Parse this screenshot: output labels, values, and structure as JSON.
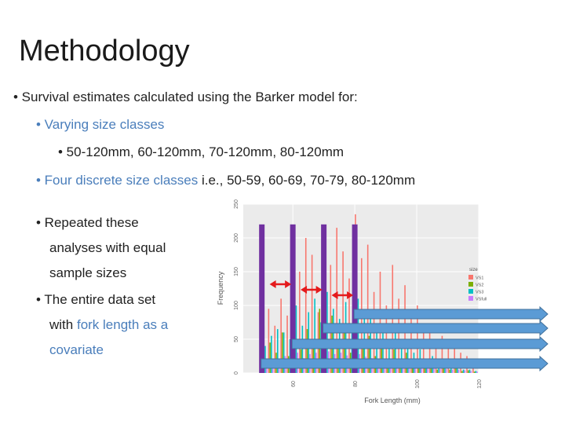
{
  "slide": {
    "title": "Methodology",
    "bullet1": "• Survival estimates calculated using the Barker model for:",
    "bullet1a": "• Varying size classes",
    "bullet1a_i": "• 50-120mm, 60-120mm, 70-120mm, 80-120mm",
    "bullet1b_blue": "• Four discrete size classes",
    "bullet1b_rest": " i.e., 50-59, 60-69, 70-79, 80-120mm",
    "bullet2_l1": "• Repeated these",
    "bullet2_l2": "analyses with equal",
    "bullet2_l3": "sample sizes",
    "bullet3_l1": "• The entire data set",
    "bullet3_l2_a": "with ",
    "bullet3_l2_b": "fork length as a",
    "bullet3_l3": "covariate"
  },
  "colors": {
    "accent_text": "#4a7ebb",
    "size_bar": "#7030a0",
    "arrow_red": "#e41a1c",
    "arrow_blue": "#5b9bd5",
    "VS1": "#f8766d",
    "VS2": "#7cae00",
    "VS3": "#00bfc4",
    "VSfull": "#c77cff"
  },
  "chart_data": {
    "type": "bar",
    "ylabel": "Frequency",
    "xlabel": "Fork Length (mm)",
    "yticks": [
      "0",
      "50",
      "100",
      "150",
      "200",
      "250"
    ],
    "xticks": [
      "60",
      "80",
      "100",
      "120"
    ],
    "ylim": [
      0,
      250
    ],
    "xlim": [
      44,
      120
    ],
    "legend_title": "size",
    "legend_position": "right",
    "legend": [
      "VS1",
      "VS2",
      "VS3",
      "VSfull"
    ],
    "size_class_lines": [
      50,
      60,
      70,
      80
    ],
    "bins": [
      50,
      52,
      54,
      56,
      58,
      60,
      62,
      64,
      66,
      68,
      70,
      72,
      74,
      76,
      78,
      80,
      82,
      84,
      86,
      88,
      90,
      92,
      94,
      96,
      98,
      100,
      102,
      104,
      106,
      108,
      110,
      112,
      114,
      116,
      118
    ],
    "series": [
      {
        "name": "VS1",
        "values": [
          80,
          95,
          70,
          110,
          85,
          185,
          150,
          200,
          175,
          90,
          195,
          160,
          215,
          180,
          140,
          235,
          170,
          190,
          120,
          150,
          100,
          160,
          110,
          130,
          90,
          100,
          60,
          70,
          50,
          55,
          40,
          45,
          30,
          25,
          20
        ]
      },
      {
        "name": "VS2",
        "values": [
          70,
          45,
          30,
          60,
          25,
          55,
          35,
          65,
          40,
          95,
          60,
          85,
          40,
          60,
          30,
          70,
          40,
          55,
          25,
          45,
          20,
          35,
          15,
          30,
          10,
          20,
          10,
          15,
          5,
          10,
          5,
          8,
          3,
          4,
          2
        ]
      },
      {
        "name": "VS3",
        "values": [
          40,
          55,
          65,
          60,
          50,
          100,
          70,
          90,
          110,
          75,
          120,
          95,
          80,
          105,
          70,
          110,
          90,
          85,
          60,
          70,
          50,
          60,
          40,
          45,
          30,
          35,
          20,
          25,
          15,
          15,
          10,
          10,
          5,
          5,
          3
        ]
      },
      {
        "name": "VSfull",
        "values": [
          15,
          20,
          18,
          25,
          20,
          30,
          22,
          28,
          30,
          25,
          32,
          28,
          30,
          26,
          22,
          28,
          24,
          22,
          18,
          20,
          15,
          16,
          12,
          12,
          10,
          10,
          8,
          8,
          6,
          6,
          5,
          5,
          4,
          3,
          2
        ]
      }
    ],
    "arrows_red": [
      [
        52,
        60
      ],
      [
        62,
        70
      ],
      [
        72,
        80
      ]
    ],
    "arrows_blue": [
      [
        80,
        120
      ],
      [
        70,
        120
      ],
      [
        60,
        120
      ],
      [
        50,
        120
      ]
    ]
  }
}
